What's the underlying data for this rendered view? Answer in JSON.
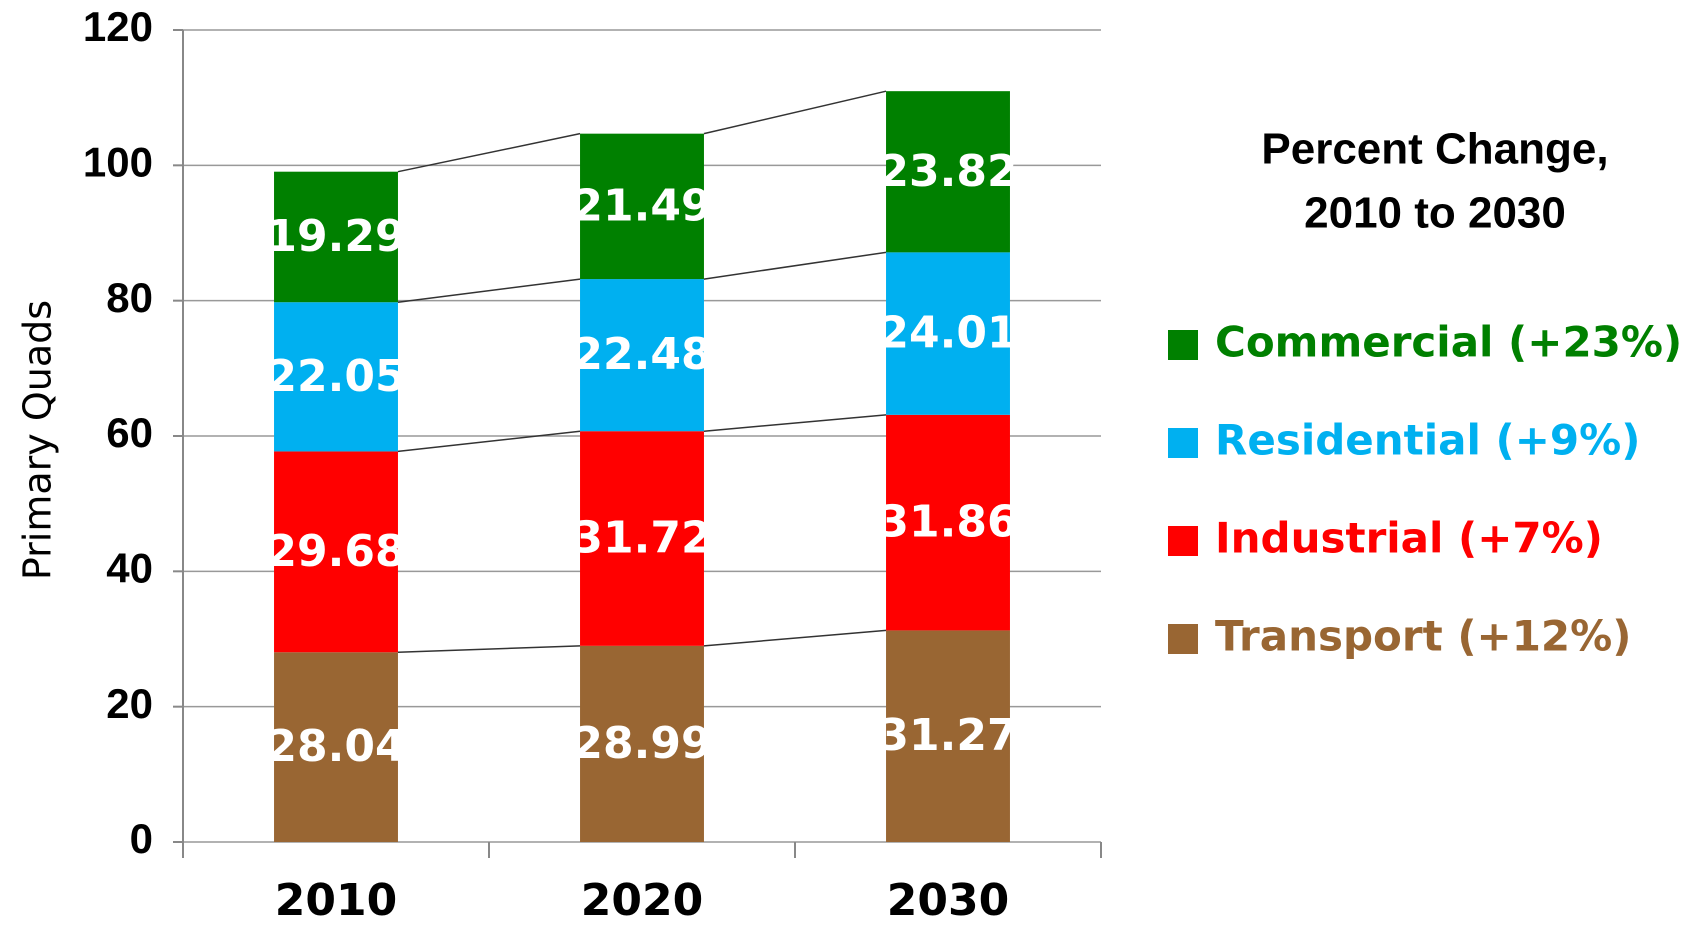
{
  "chart_data": {
    "type": "stacked_bar",
    "ylabel": "Primary Quads",
    "categories": [
      "2010",
      "2020",
      "2030"
    ],
    "series": [
      {
        "name": "Transport (+12%)",
        "color": "#996633",
        "values": [
          28.04,
          28.99,
          31.27
        ]
      },
      {
        "name": "Industrial (+7%)",
        "color": "#ff0000",
        "values": [
          29.68,
          31.72,
          31.86
        ]
      },
      {
        "name": "Residential (+9%)",
        "color": "#00b0f0",
        "values": [
          22.05,
          22.48,
          24.01
        ]
      },
      {
        "name": "Commercial (+23%)",
        "color": "#008000",
        "values": [
          19.29,
          21.49,
          23.82
        ]
      }
    ],
    "legend_title": [
      "Percent Change,",
      "2010 to 2030"
    ],
    "ylim": [
      0,
      120
    ],
    "yticks": [
      0,
      20,
      40,
      60,
      80,
      100,
      120
    ],
    "grid": true
  }
}
